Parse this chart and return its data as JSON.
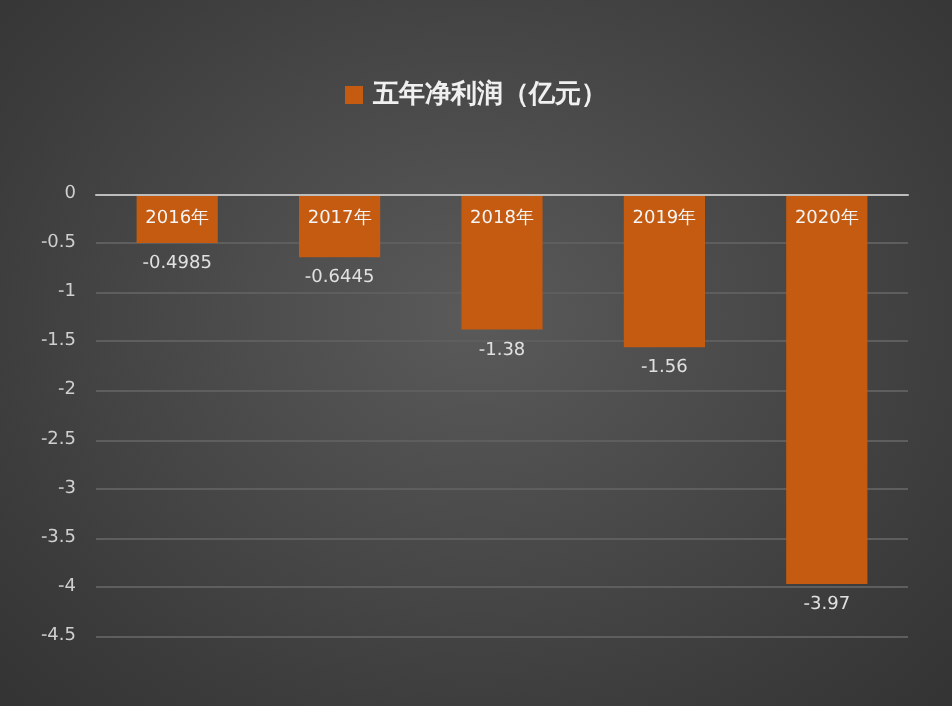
{
  "chart_data": {
    "type": "bar",
    "categories": [
      "2016年",
      "2017年",
      "2018年",
      "2019年",
      "2020年"
    ],
    "series": [
      {
        "name": "五年净利润（亿元）",
        "color": "#c55a11",
        "values": [
          -0.4985,
          -0.6445,
          -1.38,
          -1.56,
          -3.97
        ]
      }
    ],
    "ylim": [
      -4.5,
      0
    ],
    "yticks": [
      0,
      -0.5,
      -1,
      -1.5,
      -2,
      -2.5,
      -3,
      -3.5,
      -4,
      -4.5
    ],
    "grid": "y",
    "legend": "top",
    "data_labels": true
  }
}
